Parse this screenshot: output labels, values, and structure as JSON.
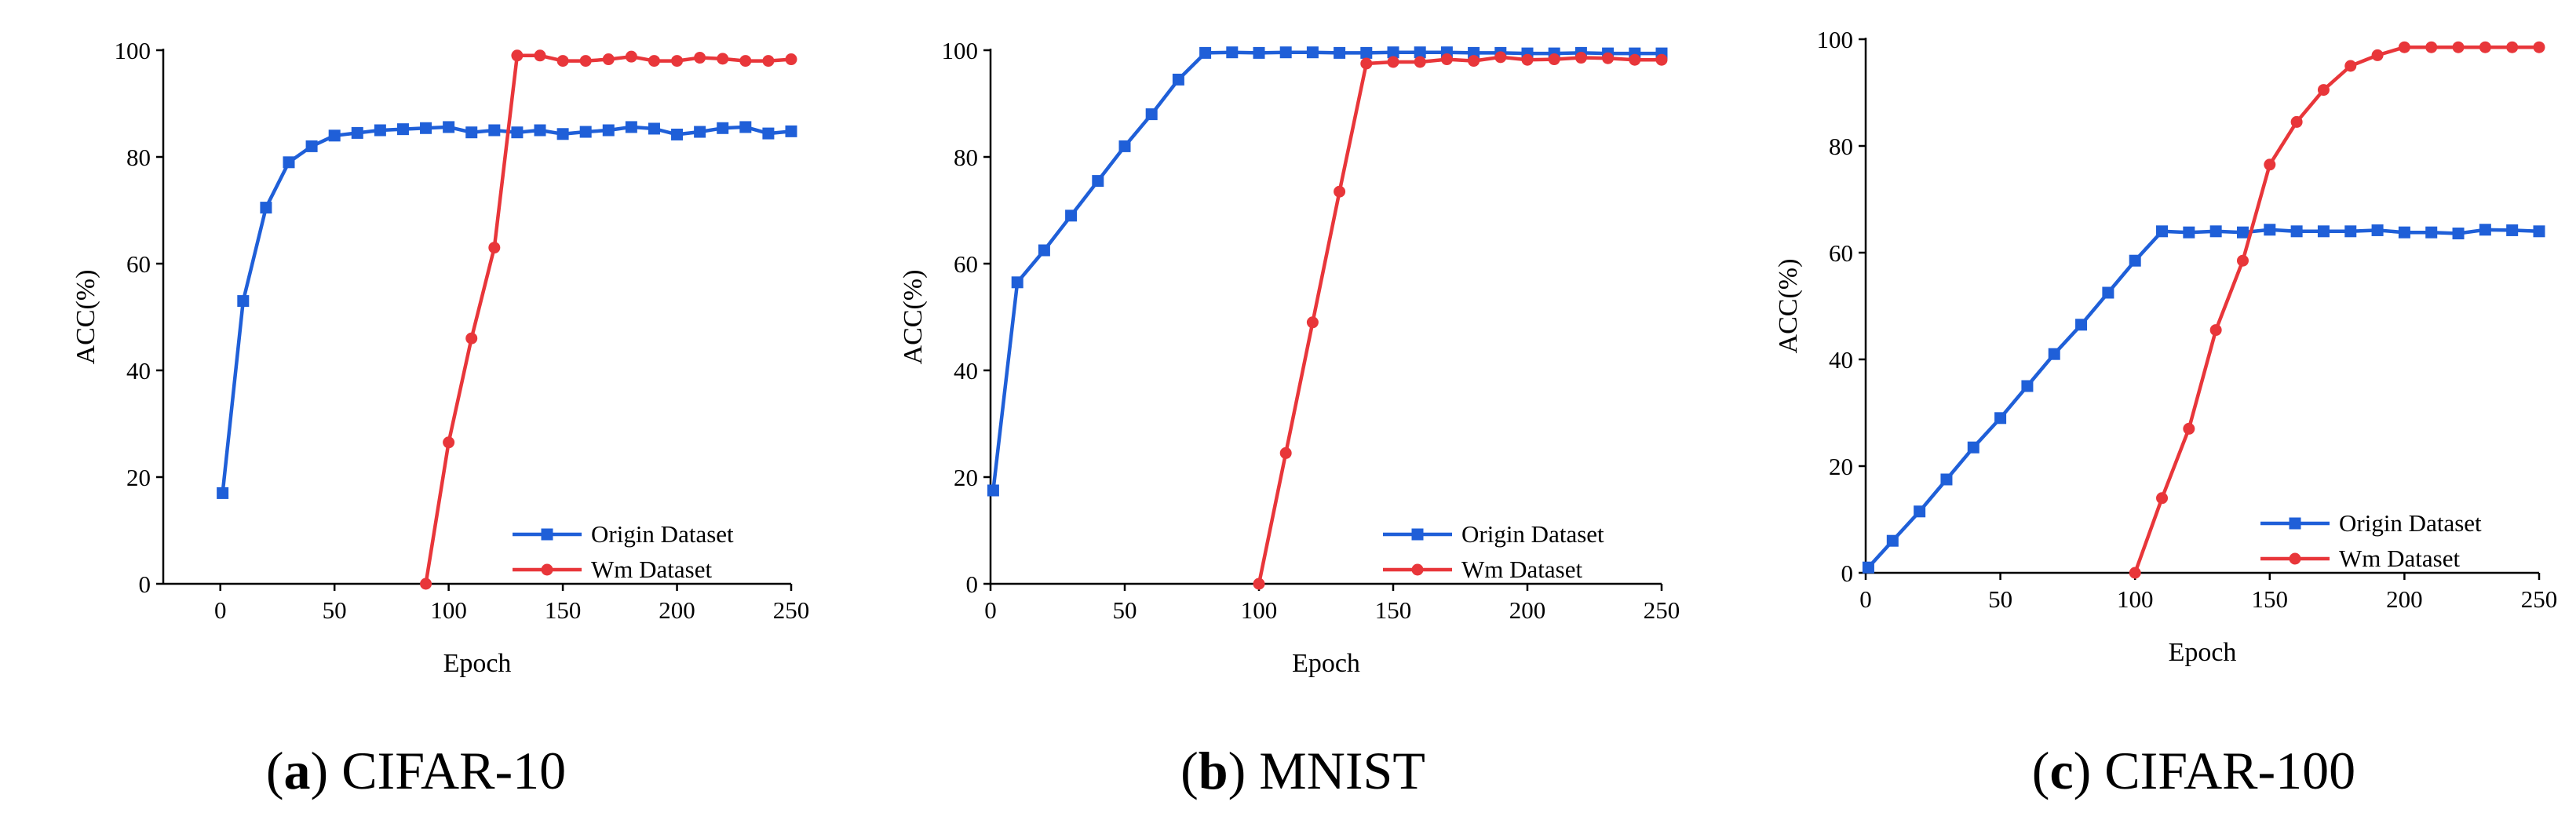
{
  "chart_data": [
    {
      "type": "line",
      "caption": {
        "open": "(",
        "letter": "a",
        "close": ")",
        "title": "CIFAR-10"
      },
      "xlabel": "Epoch",
      "ylabel": "ACC(%)",
      "xlim": [
        -25,
        250
      ],
      "ylim": [
        0,
        100
      ],
      "xticks": [
        0,
        50,
        100,
        150,
        200,
        250
      ],
      "yticks": [
        0,
        20,
        40,
        60,
        80,
        100
      ],
      "legend_position": "bottom-right",
      "series": [
        {
          "name": "Origin Dataset",
          "color": "#1f5fd8",
          "marker": "square",
          "x": [
            1,
            10,
            20,
            30,
            40,
            50,
            60,
            70,
            80,
            90,
            100,
            110,
            120,
            130,
            140,
            150,
            160,
            170,
            180,
            190,
            200,
            210,
            220,
            230,
            240,
            250
          ],
          "y": [
            17,
            53,
            70.5,
            79,
            82,
            84,
            84.5,
            85,
            85.2,
            85.4,
            85.6,
            84.6,
            85,
            84.6,
            85,
            84.3,
            84.7,
            85,
            85.6,
            85.3,
            84.2,
            84.7,
            85.4,
            85.6,
            84.4,
            84.8
          ]
        },
        {
          "name": "Wm Dataset",
          "color": "#e8363a",
          "marker": "circle",
          "x": [
            90,
            100,
            110,
            120,
            130,
            140,
            150,
            160,
            170,
            180,
            190,
            200,
            210,
            220,
            230,
            240,
            250
          ],
          "y": [
            0,
            26.5,
            46,
            63,
            99,
            99,
            98,
            98,
            98.3,
            98.8,
            98,
            98,
            98.6,
            98.4,
            98,
            98,
            98.3
          ]
        }
      ]
    },
    {
      "type": "line",
      "caption": {
        "open": "(",
        "letter": "b",
        "close": ")",
        "title": "MNIST"
      },
      "xlabel": "Epoch",
      "ylabel": "ACC(%)",
      "xlim": [
        0,
        250
      ],
      "ylim": [
        0,
        100
      ],
      "xticks": [
        0,
        50,
        100,
        150,
        200,
        250
      ],
      "yticks": [
        0,
        20,
        40,
        60,
        80,
        100
      ],
      "legend_position": "bottom-right",
      "series": [
        {
          "name": "Origin Dataset",
          "color": "#1f5fd8",
          "marker": "square",
          "x": [
            1,
            10,
            20,
            30,
            40,
            50,
            60,
            70,
            80,
            90,
            100,
            110,
            120,
            130,
            140,
            150,
            160,
            170,
            180,
            190,
            200,
            210,
            220,
            230,
            240,
            250
          ],
          "y": [
            17.5,
            56.5,
            62.5,
            69,
            75.5,
            82,
            88,
            94.5,
            99.5,
            99.6,
            99.5,
            99.6,
            99.6,
            99.5,
            99.5,
            99.6,
            99.6,
            99.6,
            99.5,
            99.5,
            99.4,
            99.4,
            99.5,
            99.4,
            99.4,
            99.4
          ]
        },
        {
          "name": "Wm Dataset",
          "color": "#e8363a",
          "marker": "circle",
          "x": [
            100,
            110,
            120,
            130,
            140,
            150,
            160,
            170,
            180,
            190,
            200,
            210,
            220,
            230,
            240,
            250
          ],
          "y": [
            0,
            24.5,
            49,
            73.5,
            97.5,
            97.8,
            97.8,
            98.3,
            98,
            98.7,
            98.2,
            98.3,
            98.6,
            98.5,
            98.2,
            98.2
          ]
        }
      ]
    },
    {
      "type": "line",
      "caption": {
        "open": "(",
        "letter": "c",
        "close": ")",
        "title": "CIFAR-100"
      },
      "xlabel": "Epoch",
      "ylabel": "ACC(%)",
      "xlim": [
        0,
        250
      ],
      "ylim": [
        0,
        100
      ],
      "xticks": [
        0,
        50,
        100,
        150,
        200,
        250
      ],
      "yticks": [
        0,
        20,
        40,
        60,
        80,
        100
      ],
      "legend_position": "bottom-right",
      "series": [
        {
          "name": "Origin Dataset",
          "color": "#1f5fd8",
          "marker": "square",
          "x": [
            1,
            10,
            20,
            30,
            40,
            50,
            60,
            70,
            80,
            90,
            100,
            110,
            120,
            130,
            140,
            150,
            160,
            170,
            180,
            190,
            200,
            210,
            220,
            230,
            240,
            250
          ],
          "y": [
            1,
            6,
            11.5,
            17.5,
            23.5,
            29,
            35,
            41,
            46.5,
            52.5,
            58.5,
            64,
            63.8,
            64,
            63.8,
            64.3,
            64,
            64,
            64,
            64.2,
            63.8,
            63.8,
            63.6,
            64.3,
            64.2,
            64
          ]
        },
        {
          "name": "Wm Dataset",
          "color": "#e8363a",
          "marker": "circle",
          "x": [
            100,
            110,
            120,
            130,
            140,
            150,
            160,
            170,
            180,
            190,
            200,
            210,
            220,
            230,
            240,
            250
          ],
          "y": [
            0,
            14,
            27,
            45.5,
            58.5,
            76.5,
            84.5,
            90.5,
            95,
            97,
            98.5,
            98.5,
            98.5,
            98.5,
            98.5,
            98.5
          ]
        }
      ]
    }
  ]
}
